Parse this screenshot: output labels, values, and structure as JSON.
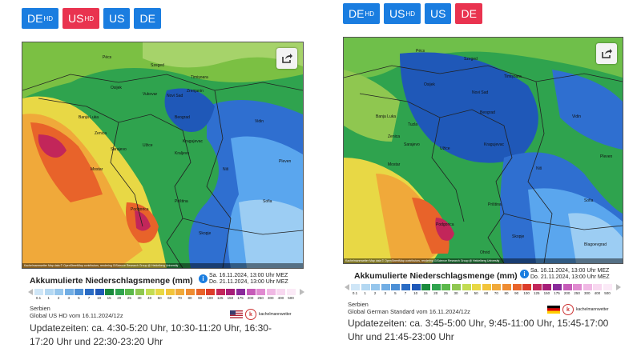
{
  "colors": {
    "button": "#1a7de0",
    "button_active": "#e9334f"
  },
  "left": {
    "buttons": [
      {
        "main": "DE",
        "sub": "HD",
        "active": false
      },
      {
        "main": "US",
        "sub": "HD",
        "active": true
      },
      {
        "main": "US",
        "sub": "",
        "active": false
      },
      {
        "main": "DE",
        "sub": "",
        "active": false
      }
    ],
    "map_credit": "Kachelmannwetter Map data © OpenStreetMap contributors, rendering GIScience Research Group @ Heidelberg University",
    "places": [
      "Pécs",
      "Szeged",
      "Timișoara",
      "Osijek",
      "Vukovar",
      "Novi Sad",
      "Zrenjanin",
      "Banja Luka",
      "Zenica",
      "Sarajevo",
      "Mostar",
      "Beograd",
      "Kragujevac",
      "Kraljevo",
      "Niš",
      "Užice",
      "Podgorica",
      "Priština",
      "Skopje",
      "Vidin",
      "Sofia",
      "Pleven"
    ],
    "legend_title": "Akkumulierte Niederschlagsmenge (mm)",
    "date_from": "Sa. 16.11.2024, 13:00 Uhr MEZ",
    "date_to": "Do. 21.11.2024, 13:00 Uhr MEZ",
    "scale_labels": [
      "0.1",
      "1",
      "2",
      "3",
      "5",
      "7",
      "10",
      "15",
      "20",
      "25",
      "30",
      "40",
      "50",
      "60",
      "70",
      "80",
      "90",
      "100",
      "125",
      "150",
      "175",
      "200",
      "250",
      "300",
      "400",
      "500"
    ],
    "region": "Serbien",
    "model": "Global US HD vom 16.11.2024/12z",
    "logo_text": "kachelmannwetter",
    "update_text": "Updatezeiten: ca. 4:30-5:20 Uhr, 10:30-11:20 Uhr, 16:30-17:20 Uhr und 22:30-23:20 Uhr"
  },
  "right": {
    "buttons": [
      {
        "main": "DE",
        "sub": "HD",
        "active": false
      },
      {
        "main": "US",
        "sub": "HD",
        "active": false
      },
      {
        "main": "US",
        "sub": "",
        "active": false
      },
      {
        "main": "DE",
        "sub": "",
        "active": true
      }
    ],
    "map_credit": "Kachelmannwetter Map data © OpenStreetMap contributors, rendering GIScience Research Group @ Heidelberg University",
    "places": [
      "Pécs",
      "Szeged",
      "Timișoara",
      "Osijek",
      "Novi Sad",
      "Banja Luka",
      "Tuzla",
      "Sarajevo",
      "Zenica",
      "Mostar",
      "Beograd",
      "Kragujevac",
      "Užice",
      "Niš",
      "Podgorica",
      "Priština",
      "Skopje",
      "Vidin",
      "Sofia",
      "Pleven",
      "Blagoevgrad",
      "Ohrid"
    ],
    "legend_title": "Akkumulierte Niederschlagsmenge (mm)",
    "date_from": "Sa. 16.11.2024, 13:00 Uhr MEZ",
    "date_to": "Do. 21.11.2024, 13:00 Uhr MEZ",
    "scale_labels": [
      "0.1",
      "1",
      "2",
      "3",
      "5",
      "7",
      "10",
      "15",
      "20",
      "25",
      "30",
      "40",
      "50",
      "60",
      "70",
      "80",
      "90",
      "100",
      "125",
      "150",
      "175",
      "200",
      "250",
      "300",
      "400",
      "500"
    ],
    "region": "Serbien",
    "model": "Global German Standard vom 16.11.2024/12z",
    "logo_text": "kachelmannwetter",
    "update_text": "Updatezeiten: ca. 3:45-5:00 Uhr, 9:45-11:00 Uhr, 15:45-17:00 Uhr und 21:45-23:00 Uhr"
  }
}
